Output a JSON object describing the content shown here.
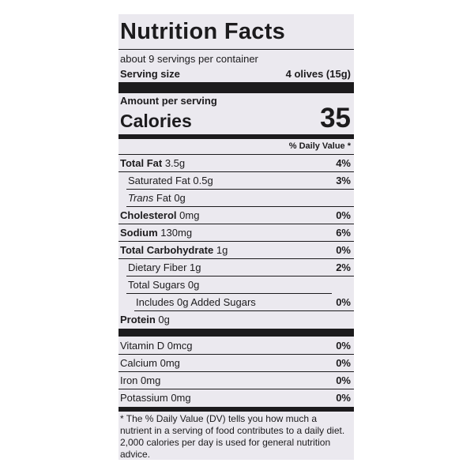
{
  "title": "Nutrition Facts",
  "servings_per_container": "about 9 servings per container",
  "serving_size": {
    "label": "Serving size",
    "value": "4 olives (15g)"
  },
  "amount_per_serving": "Amount per serving",
  "calories": {
    "label": "Calories",
    "value": "35"
  },
  "daily_value_header": "% Daily Value *",
  "nutrients": [
    {
      "name": "Total Fat",
      "amount": "3.5g",
      "dv": "4%"
    },
    {
      "name": "Saturated Fat",
      "amount": "0.5g",
      "dv": "3%"
    },
    {
      "name_italic": "Trans",
      "name": "Fat",
      "amount": "0g"
    },
    {
      "name": "Cholesterol",
      "amount": "0mg",
      "dv": "0%"
    },
    {
      "name": "Sodium",
      "amount": "130mg",
      "dv": "6%"
    },
    {
      "name": "Total Carbohydrate",
      "amount": "1g",
      "dv": "0%"
    },
    {
      "name": "Dietary Fiber",
      "amount": "1g",
      "dv": "2%"
    },
    {
      "name": "Total Sugars",
      "amount": "0g"
    },
    {
      "name": "Includes 0g Added Sugars",
      "dv": "0%"
    },
    {
      "name": "Protein",
      "amount": "0g"
    }
  ],
  "vitamins": [
    {
      "name": "Vitamin D",
      "amount": "0mcg",
      "dv": "0%"
    },
    {
      "name": "Calcium",
      "amount": "0mg",
      "dv": "0%"
    },
    {
      "name": "Iron",
      "amount": "0mg",
      "dv": "0%"
    },
    {
      "name": "Potassium",
      "amount": "0mg",
      "dv": "0%"
    }
  ],
  "footnote": "* The % Daily Value (DV) tells you how much a nutrient in a serving of food contributes to a daily diet. 2,000 calories per day is used for general nutrition advice."
}
